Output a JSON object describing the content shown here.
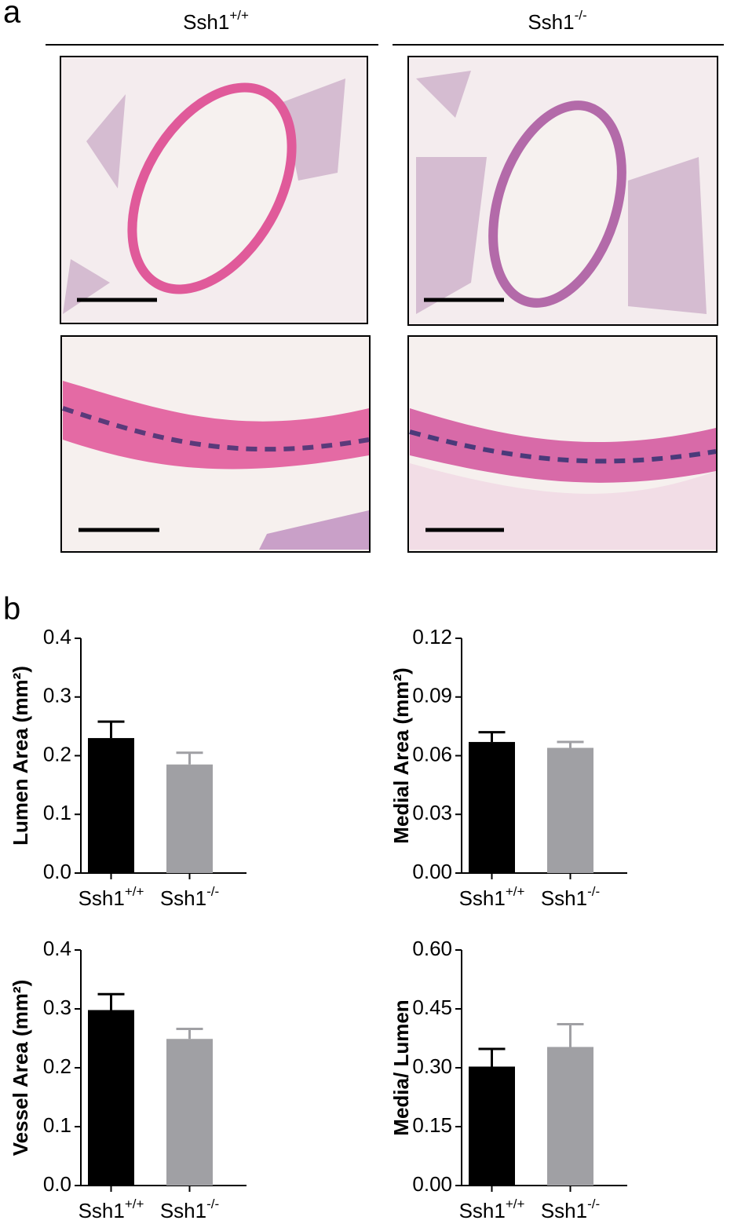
{
  "panel_a": {
    "label": "a",
    "columns": [
      "Ssh1+/+",
      "Ssh1-/-"
    ]
  },
  "panel_b": {
    "label": "b"
  },
  "chart_data": [
    {
      "type": "bar",
      "ylabel": "Lumen Area (mm²)",
      "categories": [
        "Ssh1+/+",
        "Ssh1-/-"
      ],
      "values": [
        0.23,
        0.185
      ],
      "errors": [
        0.028,
        0.02
      ],
      "colors": [
        "#000000",
        "#a0a0a4"
      ],
      "ylim": [
        0,
        0.4
      ],
      "yticks": [
        {
          "value": 0,
          "label": "0.0"
        },
        0.1,
        0.2,
        0.3,
        0.4
      ]
    },
    {
      "type": "bar",
      "ylabel": "Medial Area (mm²)",
      "categories": [
        "Ssh1+/+",
        "Ssh1-/-"
      ],
      "values": [
        0.067,
        0.064
      ],
      "errors": [
        0.005,
        0.003
      ],
      "colors": [
        "#000000",
        "#a0a0a4"
      ],
      "ylim": [
        0,
        0.12
      ],
      "yticks": [
        {
          "value": 0,
          "label": "0.00"
        },
        0.03,
        0.06,
        0.09,
        0.12
      ]
    },
    {
      "type": "bar",
      "ylabel": "Vessel Area (mm²)",
      "categories": [
        "Ssh1+/+",
        "Ssh1-/-"
      ],
      "values": [
        0.298,
        0.249
      ],
      "errors": [
        0.027,
        0.017
      ],
      "colors": [
        "#000000",
        "#a0a0a4"
      ],
      "ylim": [
        0,
        0.4
      ],
      "yticks": [
        {
          "value": 0,
          "label": "0.0"
        },
        0.1,
        0.2,
        0.3,
        0.4
      ]
    },
    {
      "type": "bar",
      "ylabel": "Media/ Lumen",
      "categories": [
        "Ssh1+/+",
        "Ssh1-/-"
      ],
      "values": [
        0.303,
        0.353
      ],
      "errors": [
        0.045,
        0.058
      ],
      "colors": [
        "#000000",
        "#a0a0a4"
      ],
      "ylim": [
        0,
        0.6
      ],
      "yticks": [
        {
          "value": 0,
          "label": "0.00"
        },
        0.15,
        {
          "value": 0.3,
          "label": "0.30"
        },
        0.45,
        {
          "value": 0.6,
          "label": "0.60"
        }
      ]
    }
  ]
}
